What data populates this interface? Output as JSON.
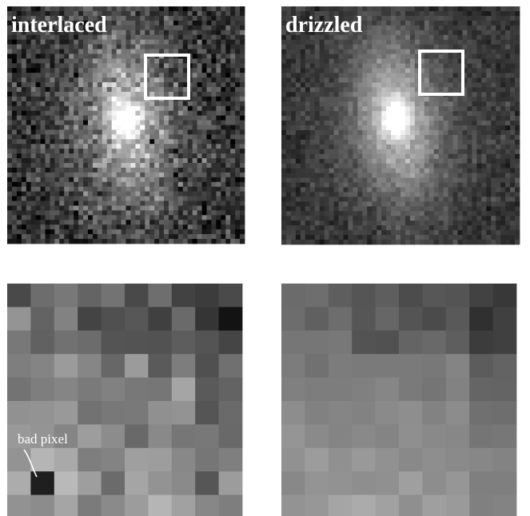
{
  "panels": {
    "top_left": {
      "label": "interlaced"
    },
    "top_right": {
      "label": "drizzled"
    },
    "bottom_left": {
      "annotation": "bad pixel"
    }
  }
}
